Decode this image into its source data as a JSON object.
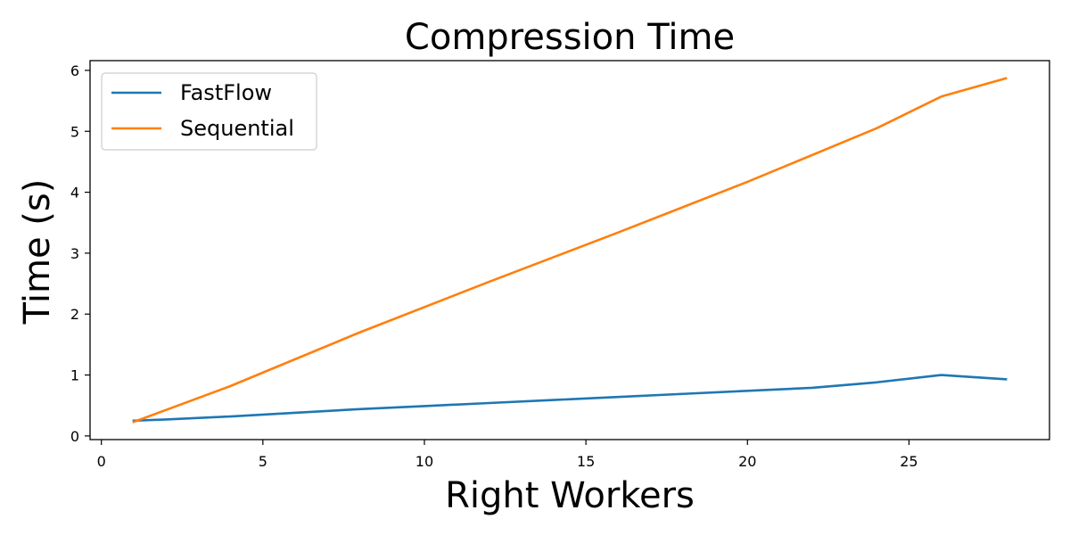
{
  "chart_data": {
    "type": "line",
    "title": "Compression Time",
    "xlabel": "Right Workers",
    "ylabel": "Time (s)",
    "xlim": [
      -0.35,
      29.35
    ],
    "ylim": [
      -0.06,
      6.16
    ],
    "xticks": [
      0,
      5,
      10,
      15,
      20,
      25
    ],
    "yticks": [
      0,
      1,
      2,
      3,
      4,
      5,
      6
    ],
    "grid": false,
    "legend_position": "top-left",
    "series": [
      {
        "name": "FastFlow",
        "color": "#1f77b4",
        "x": [
          1,
          2,
          4,
          6,
          8,
          10,
          12,
          14,
          16,
          18,
          20,
          22,
          24,
          26,
          28
        ],
        "y": [
          0.25,
          0.27,
          0.32,
          0.38,
          0.44,
          0.49,
          0.54,
          0.59,
          0.64,
          0.69,
          0.74,
          0.79,
          0.88,
          1.0,
          0.93
        ]
      },
      {
        "name": "Sequential",
        "color": "#ff7f0e",
        "x": [
          1,
          4,
          8,
          12,
          16,
          20,
          24,
          26,
          28
        ],
        "y": [
          0.23,
          0.82,
          1.7,
          2.53,
          3.34,
          4.17,
          5.05,
          5.57,
          5.87
        ]
      }
    ]
  }
}
